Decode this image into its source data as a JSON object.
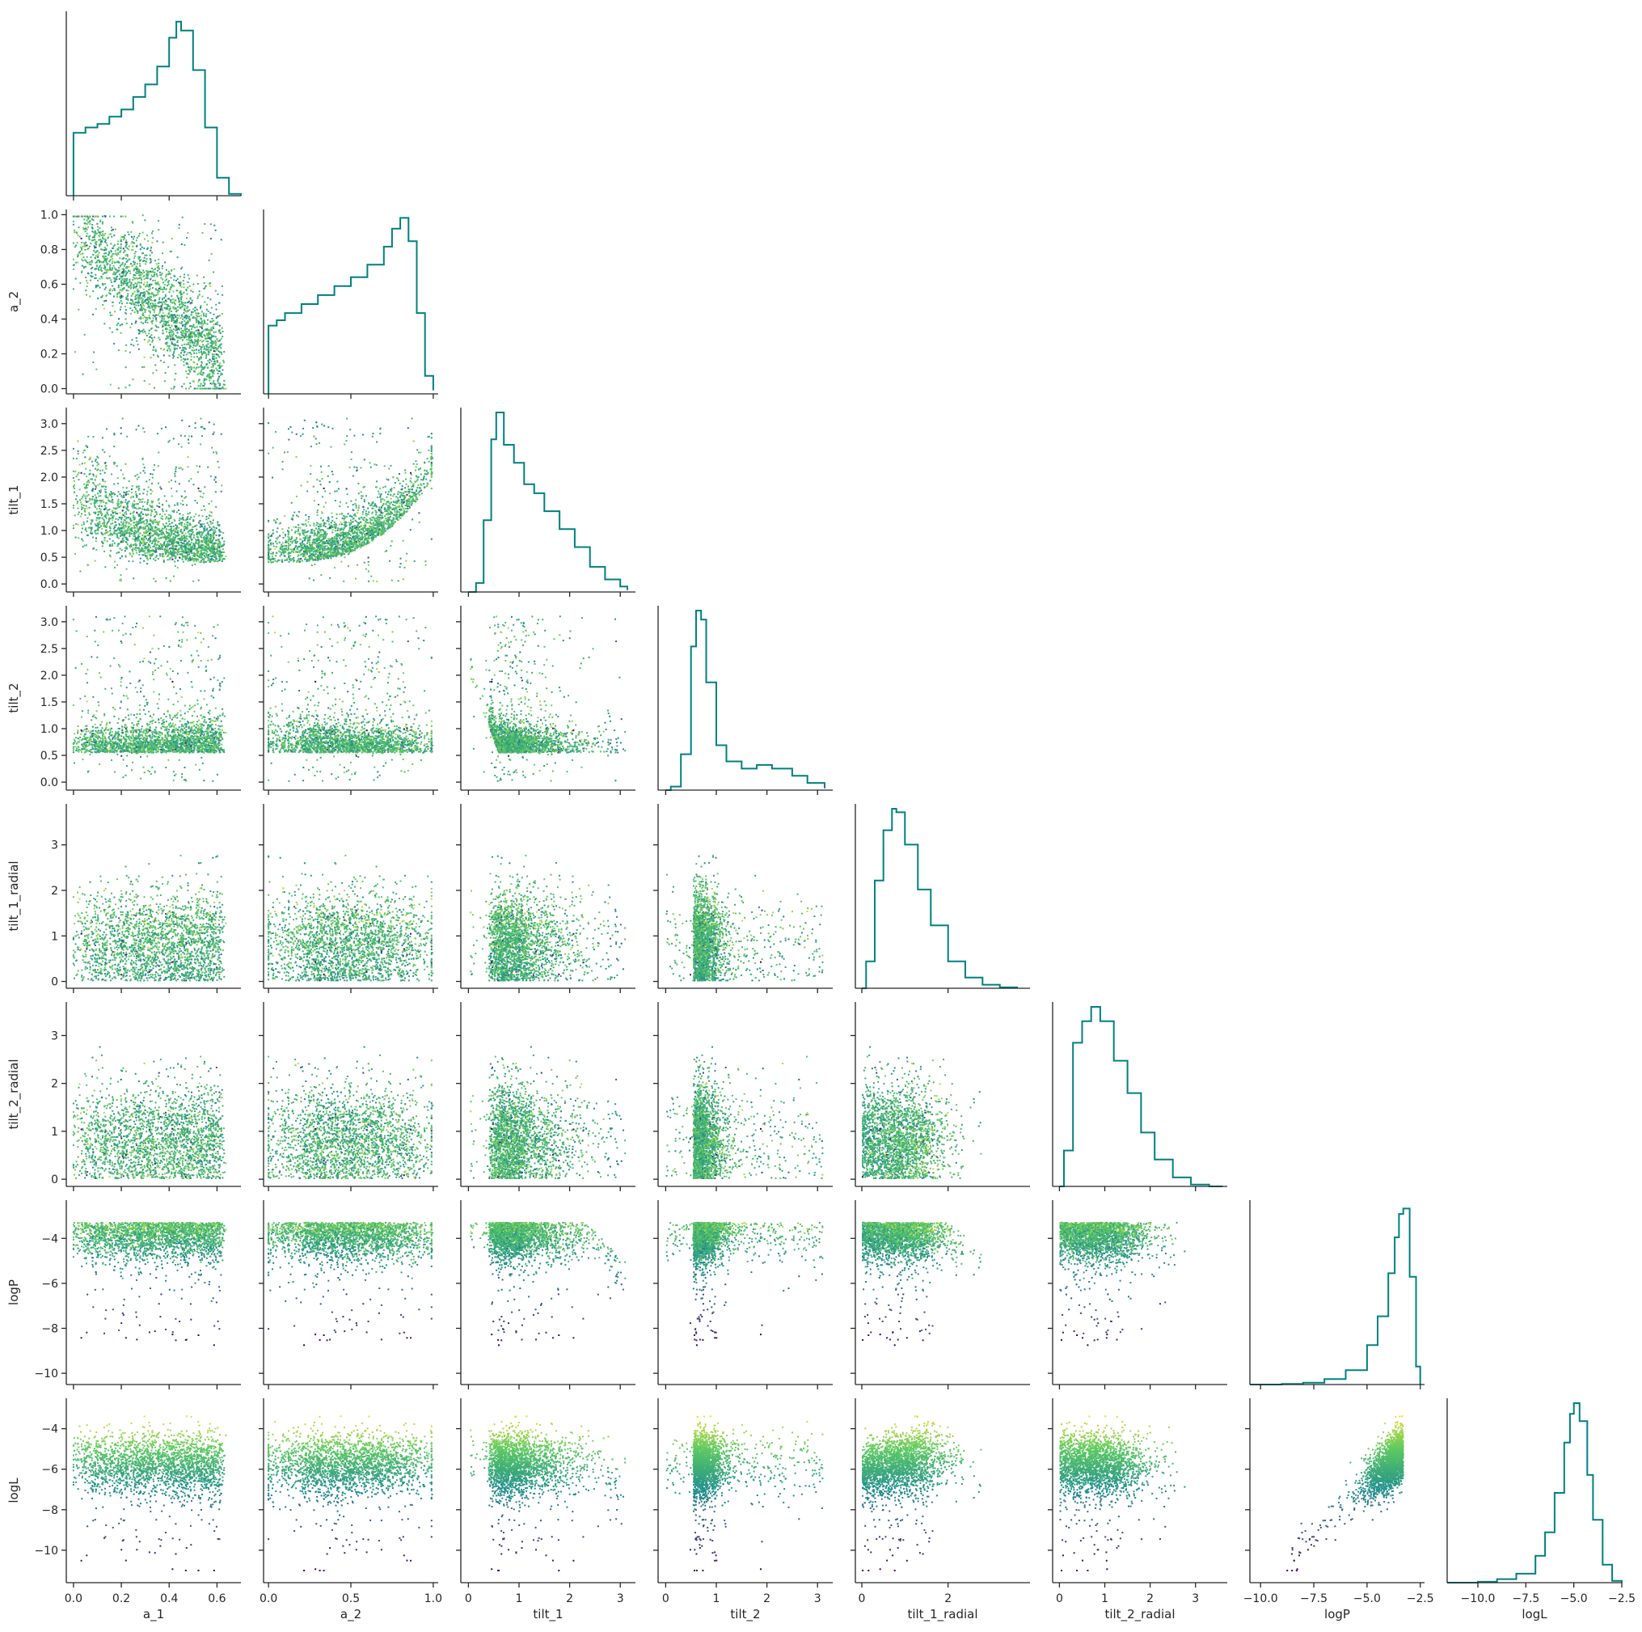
{
  "chart_data": {
    "type": "scatter",
    "layout": "corner",
    "variables": [
      "a_1",
      "a_2",
      "tilt_1",
      "tilt_2",
      "tilt_1_radial",
      "tilt_2_radial",
      "logP",
      "logL"
    ],
    "ranges": {
      "a_1": [
        -0.03,
        0.7
      ],
      "a_2": [
        -0.03,
        1.03
      ],
      "tilt_1": [
        -0.15,
        3.3
      ],
      "tilt_2": [
        -0.15,
        3.3
      ],
      "tilt_1_radial": [
        -0.15,
        3.9
      ],
      "tilt_2_radial": [
        -0.15,
        3.7
      ],
      "logP": [
        -10.5,
        -2.3
      ],
      "logL": [
        -11.6,
        -2.5
      ]
    },
    "ticks": {
      "a_1": [
        0.0,
        0.2,
        0.4,
        0.6
      ],
      "a_2": [
        0.0,
        0.5,
        1.0
      ],
      "tilt_1": [
        0,
        1,
        2,
        3
      ],
      "tilt_2": [
        0,
        1,
        2,
        3
      ],
      "tilt_1_radial": [
        0,
        2
      ],
      "tilt_2_radial": [
        0,
        1,
        2,
        3
      ],
      "logP": [
        -10.0,
        -7.5,
        -5.0,
        -2.5
      ],
      "logL": [
        -10.0,
        -7.5,
        -5.0,
        -2.5
      ]
    },
    "ytick_rows": {
      "a_2": [
        0.0,
        0.2,
        0.4,
        0.6,
        0.8,
        1.0
      ],
      "tilt_1": [
        0.0,
        0.5,
        1.0,
        1.5,
        2.0,
        2.5,
        3.0
      ],
      "tilt_2": [
        0.0,
        0.5,
        1.0,
        1.5,
        2.0,
        2.5,
        3.0
      ],
      "tilt_1_radial": [
        0,
        1,
        2,
        3
      ],
      "tilt_2_radial": [
        0,
        1,
        2,
        3
      ],
      "logP": [
        -10,
        -8,
        -6,
        -4
      ],
      "logL": [
        -10,
        -8,
        -6,
        -4
      ]
    },
    "xtick_labels": {
      "a_1": [
        "0.0",
        "0.2",
        "0.4",
        "0.6"
      ],
      "a_2": [
        "0.0",
        "0.5",
        "1.0"
      ],
      "tilt_1": [
        "0",
        "1",
        "2",
        "3"
      ],
      "tilt_2": [
        "0",
        "1",
        "2",
        "3"
      ],
      "tilt_1_radial": [
        "0",
        "2"
      ],
      "tilt_2_radial": [
        "0",
        "1",
        "2",
        "3"
      ],
      "logP": [
        "−10.0",
        "−7.5",
        "−5.0",
        "−2.5"
      ],
      "logL": [
        "−10.0",
        "−7.5",
        "−5.0",
        "−2.5"
      ]
    },
    "ytick_labels": {
      "a_2": [
        "0.0",
        "0.2",
        "0.4",
        "0.6",
        "0.8",
        "1.0"
      ],
      "tilt_1": [
        "0.0",
        "0.5",
        "1.0",
        "1.5",
        "2.0",
        "2.5",
        "3.0"
      ],
      "tilt_2": [
        "0.0",
        "0.5",
        "1.0",
        "1.5",
        "2.0",
        "2.5",
        "3.0"
      ],
      "tilt_1_radial": [
        "0",
        "1",
        "2",
        "3"
      ],
      "tilt_2_radial": [
        "0",
        "1",
        "2",
        "3"
      ],
      "logP": [
        "−10",
        "−8",
        "−6",
        "−4"
      ],
      "logL": [
        "−10",
        "−8",
        "−6",
        "−4"
      ]
    },
    "histogram_color": "#008080",
    "colormap": [
      "#440154",
      "#3b528b",
      "#21918c",
      "#5ec962",
      "#fde725"
    ],
    "color_by": "logL",
    "histograms": {
      "a_1": {
        "x": [
          0.0,
          0.05,
          0.1,
          0.15,
          0.2,
          0.25,
          0.3,
          0.35,
          0.4,
          0.43,
          0.45,
          0.5,
          0.55,
          0.6,
          0.65,
          0.7
        ],
        "density": [
          0.35,
          0.38,
          0.4,
          0.44,
          0.48,
          0.55,
          0.62,
          0.72,
          0.88,
          0.97,
          0.92,
          0.7,
          0.38,
          0.1,
          0.01,
          0.0
        ]
      },
      "a_2": {
        "x": [
          0.0,
          0.05,
          0.1,
          0.2,
          0.3,
          0.4,
          0.5,
          0.6,
          0.7,
          0.75,
          0.8,
          0.85,
          0.9,
          0.95,
          1.0
        ],
        "density": [
          0.38,
          0.41,
          0.45,
          0.5,
          0.55,
          0.6,
          0.65,
          0.72,
          0.82,
          0.92,
          0.98,
          0.85,
          0.45,
          0.1,
          0.02
        ]
      },
      "tilt_1": {
        "x": [
          0.0,
          0.15,
          0.3,
          0.45,
          0.55,
          0.7,
          0.9,
          1.1,
          1.3,
          1.5,
          1.8,
          2.1,
          2.4,
          2.7,
          3.0,
          3.14
        ],
        "density": [
          0.0,
          0.05,
          0.4,
          0.85,
          1.0,
          0.82,
          0.72,
          0.6,
          0.55,
          0.45,
          0.35,
          0.25,
          0.14,
          0.07,
          0.03,
          0.01
        ]
      },
      "tilt_2": {
        "x": [
          0.0,
          0.1,
          0.3,
          0.5,
          0.6,
          0.7,
          0.8,
          1.0,
          1.2,
          1.5,
          1.8,
          2.1,
          2.5,
          2.8,
          3.14
        ],
        "density": [
          0.0,
          0.02,
          0.2,
          0.8,
          1.0,
          0.95,
          0.6,
          0.25,
          0.16,
          0.12,
          0.14,
          0.12,
          0.08,
          0.04,
          0.01
        ]
      },
      "tilt_1_radial": {
        "x": [
          0.0,
          0.1,
          0.3,
          0.5,
          0.7,
          0.8,
          1.0,
          1.3,
          1.6,
          2.0,
          2.4,
          2.8,
          3.2,
          3.6
        ],
        "density": [
          0.0,
          0.15,
          0.6,
          0.88,
          1.0,
          0.98,
          0.8,
          0.55,
          0.35,
          0.15,
          0.06,
          0.02,
          0.005,
          0.0
        ]
      },
      "tilt_2_radial": {
        "x": [
          0.0,
          0.1,
          0.3,
          0.5,
          0.7,
          0.9,
          1.2,
          1.5,
          1.8,
          2.1,
          2.5,
          2.9,
          3.3,
          3.6
        ],
        "density": [
          0.0,
          0.2,
          0.8,
          0.92,
          1.0,
          0.92,
          0.7,
          0.52,
          0.3,
          0.15,
          0.05,
          0.01,
          0.0,
          0.0
        ]
      },
      "logP": {
        "x": [
          -10.5,
          -9,
          -8,
          -7,
          -6,
          -5,
          -4.5,
          -4,
          -3.7,
          -3.5,
          -3.3,
          -3.0,
          -2.7,
          -2.5
        ],
        "density": [
          0.0,
          0.003,
          0.01,
          0.03,
          0.08,
          0.22,
          0.38,
          0.62,
          0.82,
          0.95,
          0.98,
          0.6,
          0.1,
          0.0
        ]
      },
      "logL": {
        "x": [
          -11.6,
          -10,
          -9,
          -8,
          -7,
          -6.5,
          -6,
          -5.5,
          -5.2,
          -5.0,
          -4.7,
          -4.3,
          -4.0,
          -3.5,
          -3.0,
          -2.5
        ],
        "density": [
          0.0,
          0.005,
          0.02,
          0.05,
          0.15,
          0.28,
          0.5,
          0.78,
          0.94,
          1.0,
          0.9,
          0.6,
          0.35,
          0.1,
          0.01,
          0.0
        ]
      }
    }
  }
}
